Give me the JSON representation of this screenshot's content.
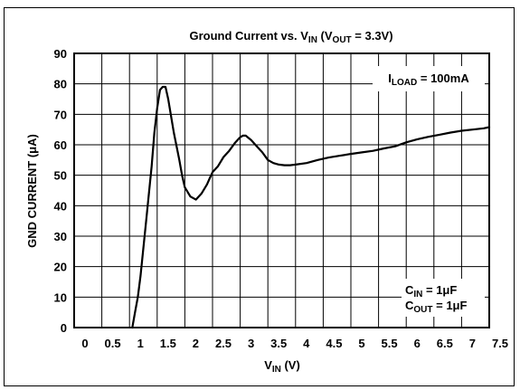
{
  "chart_data": {
    "type": "line",
    "title": {
      "pre": "Ground Current vs. V",
      "sub1": "IN",
      "mid": " (V",
      "sub2": "OUT",
      "post": " = 3.3V)"
    },
    "xlabel": {
      "main": "V",
      "sub": "IN",
      "post": " (V)"
    },
    "ylabel": "GND CURRENT (μA)",
    "xlim": [
      0,
      7.5
    ],
    "ylim": [
      0,
      90
    ],
    "grid": true,
    "x_ticks": [
      "0",
      "0.5",
      "1",
      "1.5",
      "2",
      "2.5",
      "3",
      "3.5",
      "4",
      "4.5",
      "5",
      "5.5",
      "6",
      "6.5",
      "7",
      "7.5"
    ],
    "y_ticks": [
      "0",
      "10",
      "20",
      "30",
      "40",
      "50",
      "60",
      "70",
      "80",
      "90"
    ],
    "annotations": {
      "load": {
        "main": "I",
        "sub": "LOAD",
        "post": " = 100mA"
      },
      "cin": {
        "main": "C",
        "sub": "IN",
        "post": " = 1μF"
      },
      "cout": {
        "main": "C",
        "sub": "OUT",
        "post": " = 1μF"
      }
    },
    "series": [
      {
        "x": [
          1.05,
          1.1,
          1.15,
          1.2,
          1.3,
          1.4,
          1.45,
          1.5,
          1.55,
          1.6,
          1.65,
          1.7,
          1.8,
          1.9,
          1.95,
          2.0,
          2.1,
          2.2,
          2.3,
          2.4,
          2.45,
          2.5,
          2.6,
          2.7,
          2.8,
          2.9,
          3.0,
          3.05,
          3.1,
          3.2,
          3.3,
          3.4,
          3.5,
          3.6,
          3.7,
          3.8,
          3.9,
          4.0,
          4.2,
          4.4,
          4.6,
          4.8,
          5.0,
          5.2,
          5.4,
          5.6,
          5.8,
          6.0,
          6.2,
          6.4,
          6.6,
          6.8,
          7.0,
          7.2,
          7.4,
          7.5
        ],
        "y": [
          0,
          5,
          10,
          17,
          35,
          53,
          64,
          72,
          78,
          79,
          79,
          75,
          64,
          55,
          50,
          46,
          43,
          42,
          44,
          47,
          49,
          51,
          53,
          56,
          58,
          60.5,
          62.5,
          63,
          63,
          61.5,
          59.5,
          57.5,
          55,
          54,
          53.5,
          53.3,
          53.3,
          53.5,
          54,
          55,
          55.8,
          56.4,
          57,
          57.5,
          58,
          58.8,
          59.5,
          60.8,
          61.8,
          62.6,
          63.3,
          64,
          64.6,
          65,
          65.4,
          65.8
        ]
      }
    ]
  }
}
